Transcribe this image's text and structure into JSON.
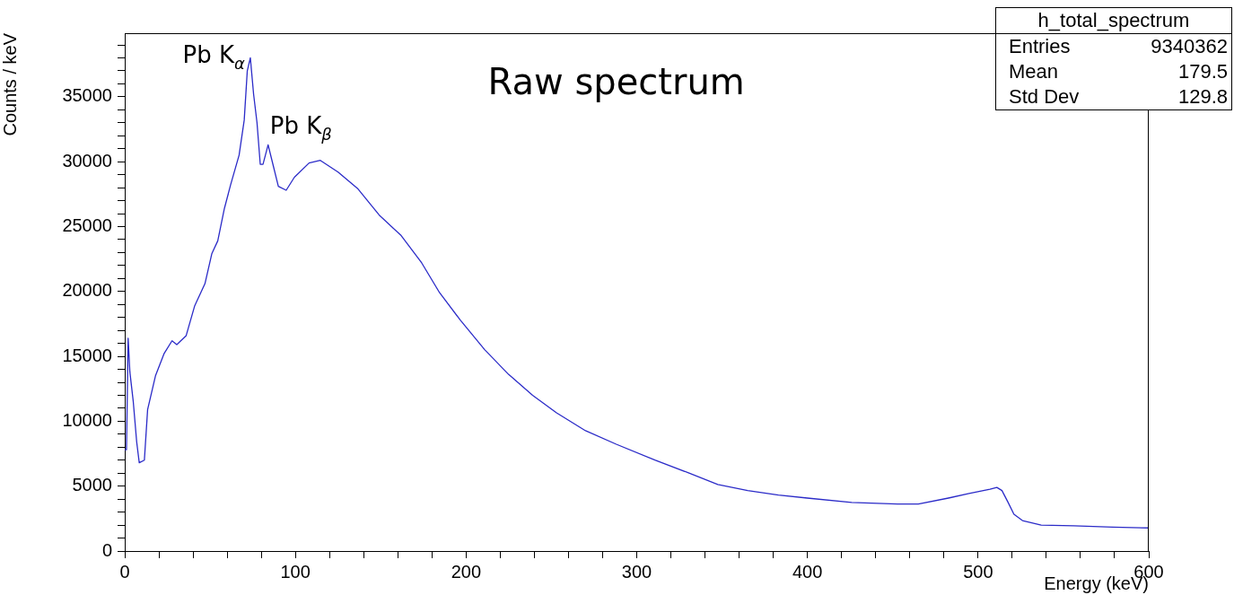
{
  "chart_data": {
    "type": "line",
    "title": "Raw spectrum",
    "xlabel": "Energy (keV)",
    "ylabel": "Counts / keV",
    "legend": false,
    "marker": "none",
    "xlim": [
      0,
      600
    ],
    "ylim": [
      0,
      39900
    ],
    "xticks": [
      0,
      {
        "value": 20,
        "label": null
      },
      {
        "value": 40,
        "label": null
      },
      {
        "value": 60,
        "label": null
      },
      {
        "value": 80,
        "label": null
      },
      100,
      {
        "value": 120,
        "label": null
      },
      {
        "value": 140,
        "label": null
      },
      {
        "value": 160,
        "label": null
      },
      {
        "value": 180,
        "label": null
      },
      200,
      {
        "value": 220,
        "label": null
      },
      {
        "value": 240,
        "label": null
      },
      {
        "value": 260,
        "label": null
      },
      {
        "value": 280,
        "label": null
      },
      300,
      {
        "value": 320,
        "label": null
      },
      {
        "value": 340,
        "label": null
      },
      {
        "value": 360,
        "label": null
      },
      {
        "value": 380,
        "label": null
      },
      400,
      {
        "value": 420,
        "label": null
      },
      {
        "value": 440,
        "label": null
      },
      {
        "value": 460,
        "label": null
      },
      {
        "value": 480,
        "label": null
      },
      500,
      {
        "value": 520,
        "label": null
      },
      {
        "value": 540,
        "label": null
      },
      {
        "value": 560,
        "label": null
      },
      {
        "value": 580,
        "label": null
      },
      600
    ],
    "yticks": [
      0,
      {
        "value": 1000,
        "label": null
      },
      {
        "value": 2000,
        "label": null
      },
      {
        "value": 3000,
        "label": null
      },
      {
        "value": 4000,
        "label": null
      },
      5000,
      {
        "value": 6000,
        "label": null
      },
      {
        "value": 7000,
        "label": null
      },
      {
        "value": 8000,
        "label": null
      },
      {
        "value": 9000,
        "label": null
      },
      10000,
      {
        "value": 11000,
        "label": null
      },
      {
        "value": 12000,
        "label": null
      },
      {
        "value": 13000,
        "label": null
      },
      {
        "value": 14000,
        "label": null
      },
      15000,
      {
        "value": 16000,
        "label": null
      },
      {
        "value": 17000,
        "label": null
      },
      {
        "value": 18000,
        "label": null
      },
      {
        "value": 19000,
        "label": null
      },
      20000,
      {
        "value": 21000,
        "label": null
      },
      {
        "value": 22000,
        "label": null
      },
      {
        "value": 23000,
        "label": null
      },
      {
        "value": 24000,
        "label": null
      },
      25000,
      {
        "value": 26000,
        "label": null
      },
      {
        "value": 27000,
        "label": null
      },
      {
        "value": 28000,
        "label": null
      },
      {
        "value": 29000,
        "label": null
      },
      30000,
      {
        "value": 31000,
        "label": null
      },
      {
        "value": 32000,
        "label": null
      },
      {
        "value": 33000,
        "label": null
      },
      {
        "value": 34000,
        "label": null
      },
      35000,
      {
        "value": 36000,
        "label": null
      },
      {
        "value": 37000,
        "label": null
      },
      {
        "value": 38000,
        "label": null
      },
      {
        "value": 39000,
        "label": null
      }
    ],
    "series": [
      {
        "color": "#2b2bc8",
        "x": [
          0,
          1,
          2,
          3,
          5,
          7,
          8.5,
          11.5,
          13.4,
          18,
          23,
          27.7,
          30.5,
          36,
          41,
          47,
          51,
          54.5,
          58.4,
          62,
          67,
          70,
          71.8,
          73.6,
          75.5,
          77.5,
          79.4,
          81,
          84,
          87,
          90,
          94.6,
          99.4,
          108,
          114.6,
          125,
          136.7,
          149,
          162,
          174,
          184.5,
          196.6,
          211,
          225,
          239,
          253,
          270,
          288,
          311,
          330,
          347.5,
          365,
          383,
          400,
          426,
          452.7,
          465,
          482.6,
          494.7,
          507,
          511,
          514,
          517.6,
          521,
          526,
          537,
          556,
          579,
          600
        ],
        "values": [
          7800,
          7800,
          16400,
          13800,
          11500,
          8400,
          6800,
          7000,
          10900,
          13500,
          15200,
          16200,
          15900,
          16600,
          18900,
          20600,
          22900,
          23900,
          26400,
          28200,
          30500,
          33200,
          37000,
          38000,
          35200,
          33000,
          29800,
          29800,
          31300,
          29700,
          28100,
          27800,
          28800,
          29900,
          30100,
          29200,
          27900,
          25900,
          24300,
          22200,
          19900,
          17800,
          15500,
          13600,
          12000,
          10650,
          9270,
          8230,
          6990,
          6040,
          5120,
          4660,
          4310,
          4080,
          3740,
          3620,
          3620,
          4080,
          4430,
          4770,
          4900,
          4660,
          3740,
          2830,
          2350,
          2000,
          1940,
          1840,
          1780
        ]
      }
    ],
    "annotations": [
      {
        "text": "Pb K$_{α}$",
        "x": 73.6,
        "y": 38000
      },
      {
        "text": "Pb K$_{β}$",
        "x": 84,
        "y": 31300
      },
      "h_total_spectrum",
      "Entries",
      "9340362",
      "Mean",
      "179.5",
      "Std Dev",
      "129.8"
    ]
  }
}
